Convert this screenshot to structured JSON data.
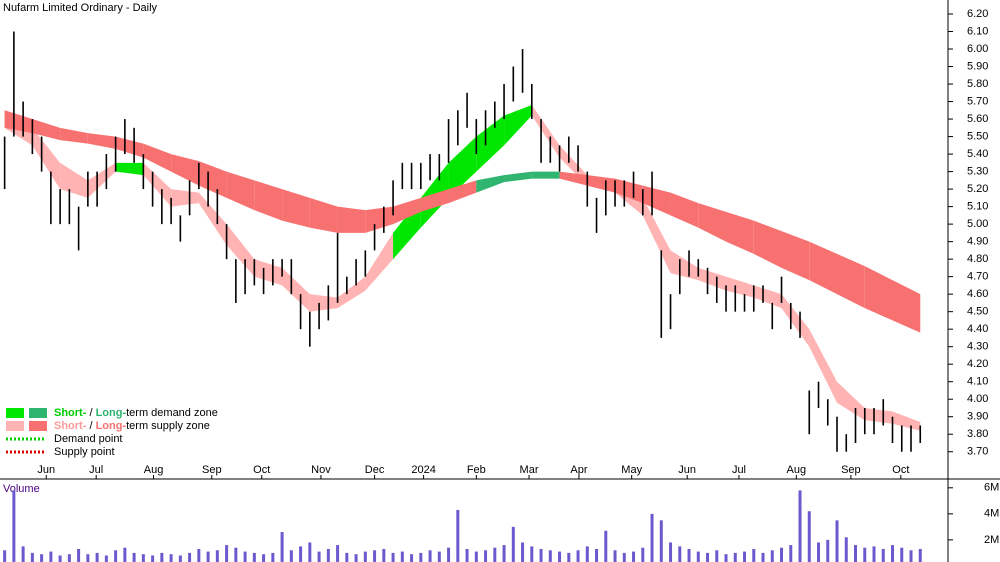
{
  "chart_data": {
    "type": "ohlc-bands",
    "title": "Nufarm Limited Ordinary - Daily",
    "volume_title": "Volume",
    "xlim": [
      -0.5,
      102
    ],
    "xticks": [
      {
        "value": 4.5,
        "label": "Jun"
      },
      {
        "value": 9.9,
        "label": "Jul"
      },
      {
        "value": 16.1,
        "label": "Aug"
      },
      {
        "value": 22.4,
        "label": "Sep"
      },
      {
        "value": 27.8,
        "label": "Oct"
      },
      {
        "value": 34.2,
        "label": "Nov"
      },
      {
        "value": 40.0,
        "label": "Dec"
      },
      {
        "value": 45.3,
        "label": "2024"
      },
      {
        "value": 51.0,
        "label": "Feb"
      },
      {
        "value": 56.7,
        "label": "Mar"
      },
      {
        "value": 62.1,
        "label": "Apr"
      },
      {
        "value": 67.8,
        "label": "May"
      },
      {
        "value": 73.8,
        "label": "Jun"
      },
      {
        "value": 79.4,
        "label": "Jul"
      },
      {
        "value": 85.6,
        "label": "Aug"
      },
      {
        "value": 91.5,
        "label": "Sep"
      },
      {
        "value": 96.9,
        "label": "Oct"
      }
    ],
    "ylim": [
      3.55,
      6.28
    ],
    "yticks": [
      {
        "value": 3.7,
        "label": "3.70"
      },
      {
        "value": 3.8,
        "label": "3.80"
      },
      {
        "value": 3.9,
        "label": "3.90"
      },
      {
        "value": 4.0,
        "label": "4.00"
      },
      {
        "value": 4.1,
        "label": "4.10"
      },
      {
        "value": 4.2,
        "label": "4.20"
      },
      {
        "value": 4.3,
        "label": "4.30"
      },
      {
        "value": 4.4,
        "label": "4.40"
      },
      {
        "value": 4.5,
        "label": "4.50"
      },
      {
        "value": 4.6,
        "label": "4.60"
      },
      {
        "value": 4.7,
        "label": "4.70"
      },
      {
        "value": 4.8,
        "label": "4.80"
      },
      {
        "value": 4.9,
        "label": "4.90"
      },
      {
        "value": 5.0,
        "label": "5.00"
      },
      {
        "value": 5.1,
        "label": "5.10"
      },
      {
        "value": 5.2,
        "label": "5.20"
      },
      {
        "value": 5.3,
        "label": "5.30"
      },
      {
        "value": 5.4,
        "label": "5.40"
      },
      {
        "value": 5.5,
        "label": "5.50"
      },
      {
        "value": 5.6,
        "label": "5.60"
      },
      {
        "value": 5.7,
        "label": "5.70"
      },
      {
        "value": 5.8,
        "label": "5.80"
      },
      {
        "value": 5.9,
        "label": "5.90"
      },
      {
        "value": 6.0,
        "label": "6.00"
      },
      {
        "value": 6.1,
        "label": "6.10"
      },
      {
        "value": 6.2,
        "label": "6.20"
      }
    ],
    "price": {
      "color": "#000000",
      "x": [
        0,
        1,
        2,
        3,
        4,
        5,
        6,
        7,
        8,
        9,
        10,
        11,
        12,
        13,
        14,
        15,
        16,
        17,
        18,
        19,
        20,
        21,
        22,
        23,
        24,
        25,
        26,
        27,
        28,
        29,
        30,
        31,
        32,
        33,
        34,
        35,
        36,
        37,
        38,
        39,
        40,
        41,
        42,
        43,
        44,
        45,
        46,
        47,
        48,
        49,
        50,
        51,
        52,
        53,
        54,
        55,
        56,
        57,
        58,
        59,
        60,
        61,
        62,
        63,
        64,
        65,
        66,
        67,
        68,
        69,
        70,
        71,
        72,
        73,
        74,
        75,
        76,
        77,
        78,
        79,
        80,
        81,
        82,
        83,
        84,
        85,
        86,
        87,
        88,
        89,
        90,
        91,
        92,
        93,
        94,
        95,
        96,
        97,
        98,
        99
      ],
      "high": [
        5.5,
        6.1,
        5.7,
        5.6,
        5.5,
        5.3,
        5.2,
        5.2,
        5.1,
        5.3,
        5.3,
        5.4,
        5.5,
        5.6,
        5.55,
        5.4,
        5.3,
        5.2,
        5.15,
        5.05,
        5.25,
        5.35,
        5.3,
        5.2,
        5.0,
        4.8,
        4.8,
        4.8,
        4.75,
        4.8,
        4.8,
        4.8,
        4.6,
        4.5,
        4.55,
        4.65,
        4.95,
        4.7,
        4.8,
        4.85,
        5.0,
        5.1,
        5.25,
        5.35,
        5.35,
        5.35,
        5.4,
        5.4,
        5.6,
        5.65,
        5.75,
        5.6,
        5.65,
        5.7,
        5.8,
        5.9,
        6.0,
        5.8,
        5.6,
        5.5,
        5.45,
        5.5,
        5.45,
        5.3,
        5.15,
        5.25,
        5.25,
        5.25,
        5.3,
        5.2,
        5.3,
        4.85,
        4.6,
        4.8,
        4.85,
        4.8,
        4.75,
        4.7,
        4.65,
        4.65,
        4.6,
        4.65,
        4.65,
        4.55,
        4.7,
        4.55,
        4.5,
        4.05,
        4.1,
        4.0,
        3.9,
        3.8,
        3.95,
        3.95,
        3.95,
        4.0,
        3.9,
        3.85,
        3.85,
        3.85
      ],
      "low": [
        5.2,
        5.5,
        5.5,
        5.4,
        5.3,
        5.0,
        5.0,
        5.0,
        4.85,
        5.1,
        5.1,
        5.2,
        5.3,
        5.4,
        5.35,
        5.2,
        5.1,
        5.0,
        5.0,
        4.9,
        5.05,
        5.2,
        5.1,
        5.0,
        4.8,
        4.55,
        4.6,
        4.65,
        4.6,
        4.65,
        4.7,
        4.6,
        4.4,
        4.3,
        4.4,
        4.45,
        4.55,
        4.6,
        4.65,
        4.7,
        4.85,
        4.95,
        5.05,
        5.2,
        5.2,
        5.2,
        5.25,
        5.25,
        5.35,
        5.45,
        5.55,
        5.4,
        5.45,
        5.55,
        5.6,
        5.7,
        5.75,
        5.6,
        5.35,
        5.35,
        5.3,
        5.35,
        5.3,
        5.1,
        4.95,
        5.05,
        5.1,
        5.1,
        5.15,
        5.05,
        5.05,
        4.35,
        4.4,
        4.6,
        4.7,
        4.7,
        4.6,
        4.55,
        4.5,
        4.5,
        4.5,
        4.5,
        4.55,
        4.4,
        4.55,
        4.4,
        4.35,
        3.8,
        3.95,
        3.85,
        3.7,
        3.7,
        3.75,
        3.8,
        3.8,
        3.85,
        3.75,
        3.7,
        3.7,
        3.75
      ]
    },
    "bands": [
      {
        "x": [
          0,
          3,
          6,
          9,
          12,
          15,
          18,
          21,
          24,
          27,
          30,
          33,
          36,
          39,
          42,
          45,
          48,
          51,
          54,
          57,
          60,
          63,
          66,
          69,
          72,
          75,
          78,
          81,
          84,
          87,
          90,
          93,
          96,
          99
        ],
        "upper": [
          5.65,
          5.55,
          5.35,
          5.25,
          5.35,
          5.35,
          5.2,
          5.18,
          5.0,
          4.8,
          4.75,
          4.6,
          4.58,
          4.7,
          4.95,
          5.15,
          5.35,
          5.5,
          5.62,
          5.68,
          5.45,
          5.28,
          5.25,
          5.15,
          4.85,
          4.75,
          4.7,
          4.65,
          4.6,
          4.4,
          4.1,
          3.95,
          3.93,
          3.87
        ],
        "lower": [
          5.55,
          5.45,
          5.2,
          5.15,
          5.3,
          5.28,
          5.1,
          5.12,
          4.88,
          4.7,
          4.65,
          4.5,
          4.52,
          4.62,
          4.8,
          4.98,
          5.15,
          5.3,
          5.45,
          5.62,
          5.38,
          5.22,
          5.18,
          5.05,
          4.72,
          4.68,
          4.62,
          4.58,
          4.52,
          4.3,
          3.98,
          3.88,
          3.86,
          3.82
        ],
        "zones": [
          "supply",
          "supply",
          "supply",
          "supply",
          "demand",
          "supply",
          "supply",
          "supply",
          "supply",
          "supply",
          "supply",
          "supply",
          "supply",
          "supply",
          "demand",
          "demand",
          "demand",
          "demand",
          "demand",
          "supply",
          "supply",
          "supply",
          "supply",
          "supply",
          "supply",
          "supply",
          "supply",
          "supply",
          "supply",
          "supply",
          "supply",
          "supply",
          "supply",
          "supply"
        ],
        "colors": {
          "demand": "#00e600",
          "supply": "#ffb3b3"
        }
      },
      {
        "x": [
          0,
          3,
          6,
          9,
          12,
          15,
          18,
          21,
          24,
          27,
          30,
          33,
          36,
          39,
          42,
          45,
          48,
          51,
          54,
          57,
          60,
          63,
          66,
          69,
          72,
          75,
          78,
          81,
          84,
          87,
          90,
          93,
          96,
          99
        ],
        "upper": [
          5.65,
          5.6,
          5.55,
          5.52,
          5.5,
          5.46,
          5.4,
          5.36,
          5.3,
          5.25,
          5.2,
          5.15,
          5.1,
          5.08,
          5.1,
          5.15,
          5.2,
          5.25,
          5.28,
          5.3,
          5.3,
          5.28,
          5.26,
          5.22,
          5.18,
          5.12,
          5.07,
          5.02,
          4.96,
          4.9,
          4.83,
          4.76,
          4.68,
          4.6
        ],
        "lower": [
          5.55,
          5.52,
          5.48,
          5.46,
          5.43,
          5.38,
          5.3,
          5.22,
          5.15,
          5.08,
          5.02,
          4.98,
          4.95,
          4.95,
          5.0,
          5.07,
          5.12,
          5.18,
          5.24,
          5.26,
          5.26,
          5.22,
          5.18,
          5.12,
          5.05,
          4.98,
          4.9,
          4.83,
          4.75,
          4.68,
          4.6,
          4.52,
          4.45,
          4.38
        ],
        "zones": [
          "supply",
          "supply",
          "supply",
          "supply",
          "supply",
          "supply",
          "supply",
          "supply",
          "supply",
          "supply",
          "supply",
          "supply",
          "supply",
          "supply",
          "supply",
          "supply",
          "supply",
          "demand",
          "demand",
          "demand",
          "supply",
          "supply",
          "supply",
          "supply",
          "supply",
          "supply",
          "supply",
          "supply",
          "supply",
          "supply",
          "supply",
          "supply",
          "supply",
          "supply"
        ],
        "colors": {
          "demand": "#2fb56f",
          "supply": "#f87171"
        }
      }
    ],
    "volume": {
      "color": "#6a5acd",
      "ylim": [
        0.3,
        6.6
      ],
      "yticks": [
        {
          "value": 2,
          "label": "2M"
        },
        {
          "value": 4,
          "label": "4M"
        },
        {
          "value": 6,
          "label": "6M"
        }
      ],
      "values": [
        1.2,
        5.8,
        1.5,
        1.0,
        0.9,
        1.1,
        0.8,
        0.9,
        1.3,
        0.9,
        1.0,
        0.8,
        1.2,
        1.4,
        1.0,
        0.9,
        0.8,
        1.0,
        0.9,
        0.8,
        1.0,
        1.3,
        1.1,
        1.2,
        1.6,
        1.4,
        1.1,
        1.0,
        0.9,
        1.0,
        2.6,
        1.2,
        1.5,
        1.8,
        1.1,
        1.3,
        1.6,
        1.0,
        0.9,
        1.1,
        1.2,
        1.3,
        1.0,
        1.1,
        0.9,
        1.0,
        1.2,
        1.1,
        1.4,
        4.3,
        1.3,
        1.1,
        1.2,
        1.4,
        1.6,
        3.0,
        1.8,
        1.5,
        1.3,
        1.2,
        1.1,
        1.0,
        1.2,
        1.5,
        1.3,
        2.7,
        1.2,
        1.0,
        1.1,
        1.4,
        4.0,
        3.5,
        1.8,
        1.5,
        1.3,
        1.1,
        1.0,
        1.2,
        0.9,
        1.0,
        1.1,
        1.3,
        1.0,
        1.2,
        1.4,
        1.6,
        5.8,
        4.2,
        1.8,
        2.0,
        3.5,
        2.2,
        1.6,
        1.4,
        1.5,
        1.3,
        1.6,
        1.4,
        1.2,
        1.3
      ]
    },
    "legend": [
      {
        "swatches": [
          "#00e600",
          "#2fb56f"
        ],
        "parts": [
          {
            "text": "Short-",
            "color": "#00cc00"
          },
          {
            "text": " / "
          },
          {
            "text": "Long-",
            "color": "#2fb56f"
          },
          {
            "text": "term demand zone"
          }
        ]
      },
      {
        "swatches": [
          "#ffb3b3",
          "#f87171"
        ],
        "parts": [
          {
            "text": "Short-",
            "color": "#ff9999"
          },
          {
            "text": " / "
          },
          {
            "text": "Long-",
            "color": "#f87171"
          },
          {
            "text": "term supply zone"
          }
        ]
      },
      {
        "dotted": "#00cc00",
        "parts": [
          {
            "text": "Demand point"
          }
        ]
      },
      {
        "dotted": "#dd0000",
        "parts": [
          {
            "text": "Supply point"
          }
        ]
      }
    ]
  }
}
